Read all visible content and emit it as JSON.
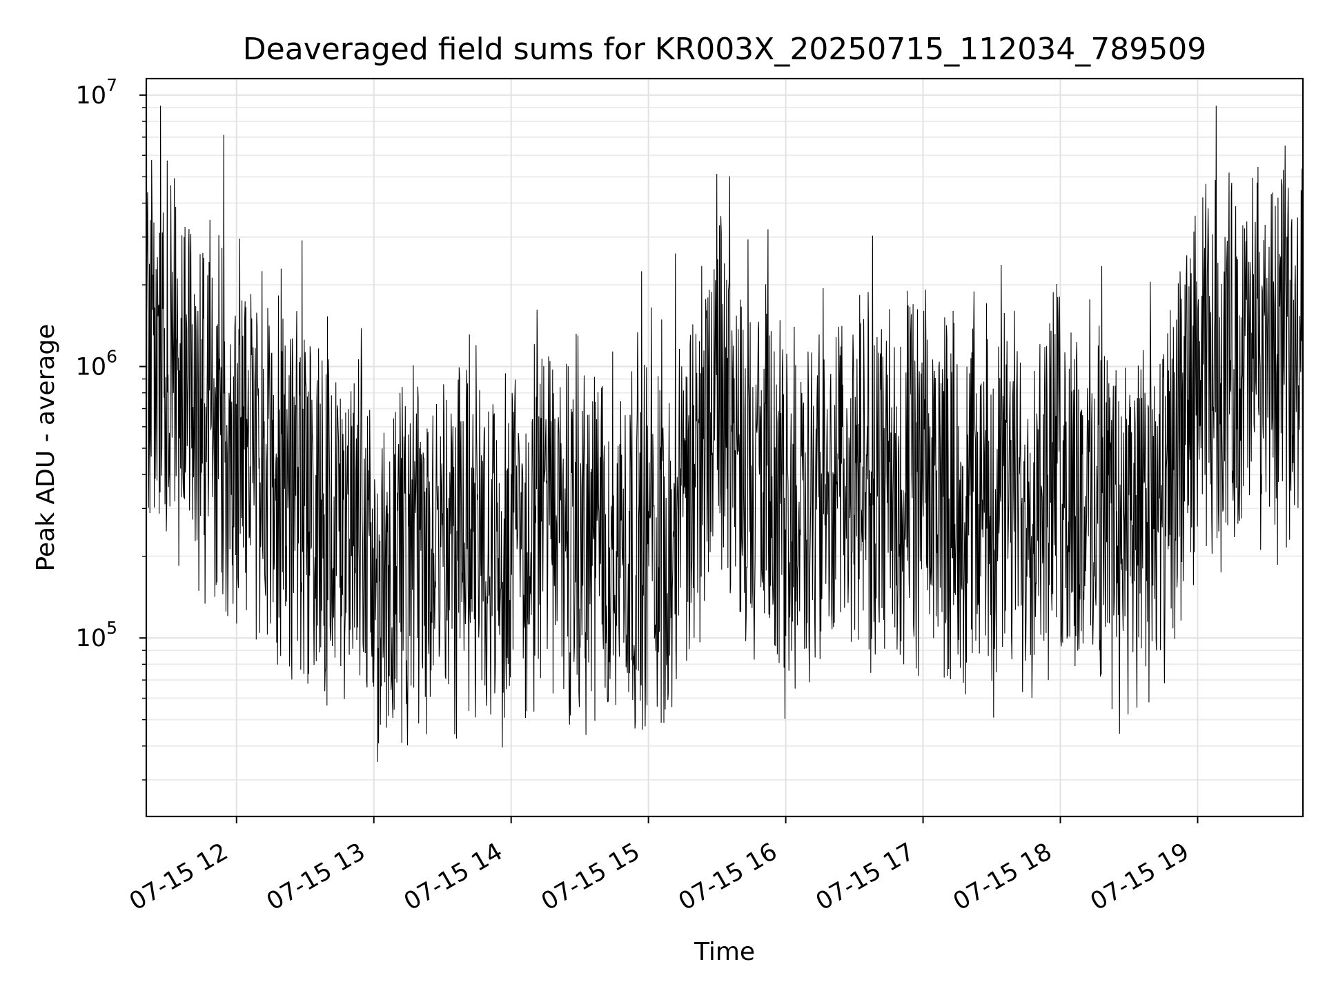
{
  "chart_data": {
    "type": "line",
    "title": "Deaveraged field sums for KR003X_20250715_112034_789509",
    "xlabel": "Time",
    "ylabel": "Peak ADU - average",
    "yscale": "log",
    "ylim": [
      22000,
      11500000
    ],
    "xlim": [
      "2025-07-15 11:20:34",
      "2025-07-15 19:46:00"
    ],
    "grid": true,
    "line_color": "#000000",
    "x_tick_labels": [
      "07-15 12",
      "07-15 13",
      "07-15 14",
      "07-15 15",
      "07-15 16",
      "07-15 17",
      "07-15 18",
      "07-15 19"
    ],
    "y_tick_labels": [
      {
        "base": "10",
        "exp": "5",
        "value": 100000
      },
      {
        "base": "10",
        "exp": "6",
        "value": 1000000
      },
      {
        "base": "10",
        "exp": "7",
        "value": 10000000
      }
    ],
    "series": [
      {
        "x": [
          "2025-07-15 11:20:34",
          "2025-07-15 11:33:00",
          "2025-07-15 11:40:00",
          "2025-07-15 11:50:00",
          "2025-07-15 12:00:00",
          "2025-07-15 12:15:00",
          "2025-07-15 12:30:00",
          "2025-07-15 12:45:00",
          "2025-07-15 13:00:00",
          "2025-07-15 13:15:00",
          "2025-07-15 13:30:00",
          "2025-07-15 13:45:00",
          "2025-07-15 14:00:00",
          "2025-07-15 14:15:00",
          "2025-07-15 14:30:00",
          "2025-07-15 14:45:00",
          "2025-07-15 15:00:00",
          "2025-07-15 15:15:00",
          "2025-07-15 15:30:00",
          "2025-07-15 15:45:00",
          "2025-07-15 16:00:00",
          "2025-07-15 16:15:00",
          "2025-07-15 16:30:00",
          "2025-07-15 16:45:00",
          "2025-07-15 17:00:00",
          "2025-07-15 17:15:00",
          "2025-07-15 17:30:00",
          "2025-07-15 17:45:00",
          "2025-07-15 18:00:00",
          "2025-07-15 18:15:00",
          "2025-07-15 18:30:00",
          "2025-07-15 18:45:00",
          "2025-07-15 19:00:00",
          "2025-07-15 19:15:00",
          "2025-07-15 19:30:00",
          "2025-07-15 19:46:00"
        ],
        "y": [
          900000,
          1200000,
          800000,
          650000,
          500000,
          380000,
          320000,
          330000,
          180000,
          170000,
          220000,
          260000,
          210000,
          270000,
          230000,
          220000,
          240000,
          260000,
          950000,
          380000,
          260000,
          330000,
          370000,
          360000,
          330000,
          350000,
          310000,
          330000,
          380000,
          300000,
          250000,
          260000,
          900000,
          1050000,
          1000000,
          1200000
        ]
      }
    ]
  }
}
